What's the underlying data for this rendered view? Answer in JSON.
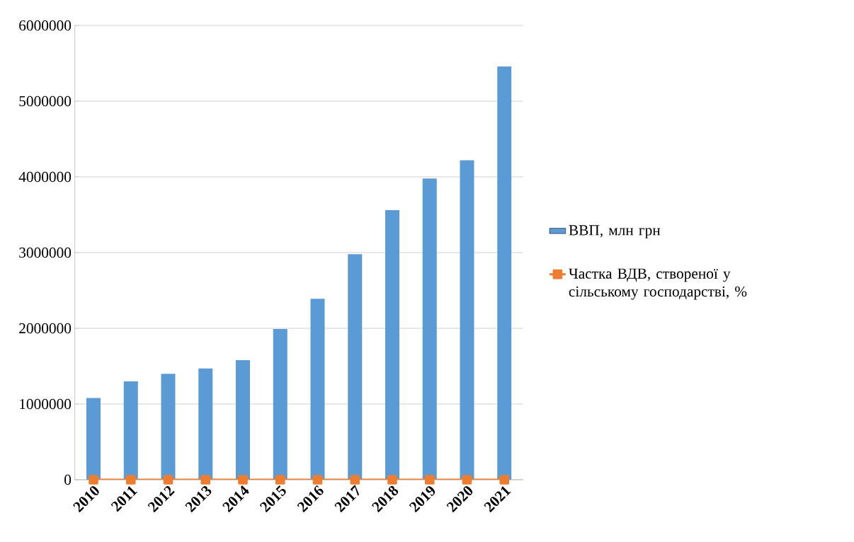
{
  "chart_data": {
    "type": "bar",
    "categories": [
      "2010",
      "2011",
      "2012",
      "2013",
      "2014",
      "2015",
      "2016",
      "2017",
      "2018",
      "2019",
      "2020",
      "2021"
    ],
    "series": [
      {
        "name": "ВВП, млн грн",
        "color": "#5b9bd5",
        "values": [
          1080000,
          1300000,
          1400000,
          1470000,
          1580000,
          1990000,
          2390000,
          2980000,
          3560000,
          3980000,
          4220000,
          5460000
        ]
      },
      {
        "name": "Частка ВДВ, створеної у сільському господарстві, %",
        "type": "line",
        "color": "#ed7d31",
        "marker": "square",
        "values": [
          0,
          0,
          0,
          0,
          0,
          0,
          0,
          0,
          0,
          0,
          0,
          0
        ]
      }
    ],
    "ylim": [
      0,
      6000000
    ],
    "yticks": [
      0,
      1000000,
      2000000,
      3000000,
      4000000,
      5000000,
      6000000
    ],
    "grid": "y",
    "legend": "right"
  }
}
